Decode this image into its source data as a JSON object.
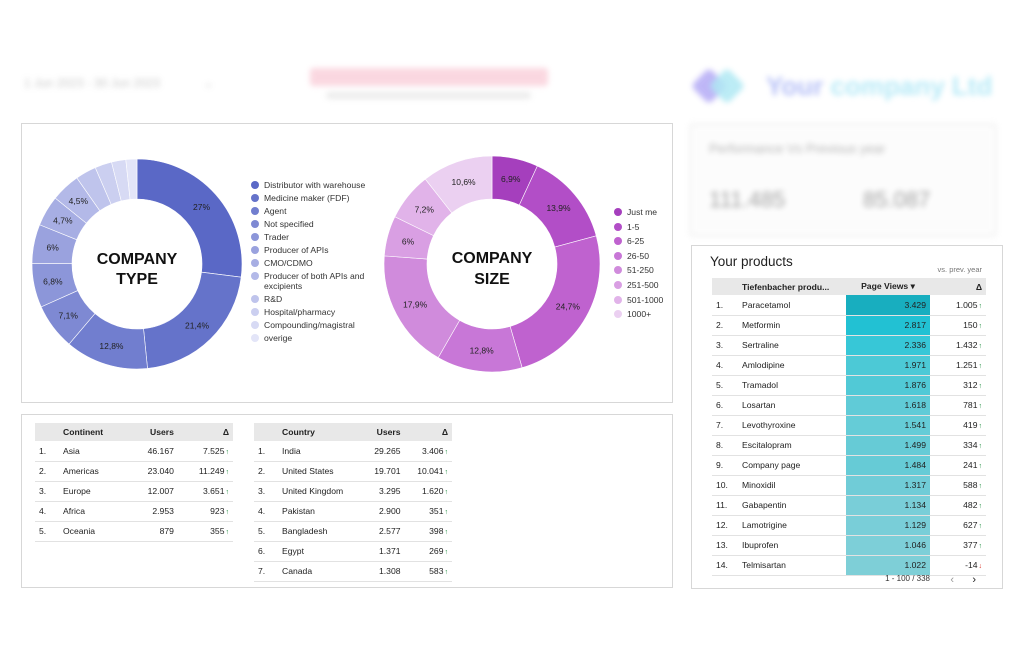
{
  "header": {
    "date_range": "1 Jun 2023 - 30 Jun 2023",
    "company_name_a": "Your",
    "company_name_b": "company Ltd"
  },
  "blur_card": {
    "title": "Performance Vs Previous year",
    "value_a": "111.485",
    "value_b": "85.087"
  },
  "colors": {
    "type_base": "#5c6bc8",
    "size_base": "#a13fc0",
    "bar_cyan": "#18b9cc",
    "up": "#1e8e3e",
    "down": "#d93025"
  },
  "company_type": {
    "label_line1": "COMPANY",
    "label_line2": "TYPE",
    "slices": [
      {
        "name": "Distributor with warehouse",
        "value": 27,
        "label": "27%",
        "color": "#5a68c6"
      },
      {
        "name": "Medicine maker (FDF)",
        "value": 21.4,
        "label": "21,4%",
        "color": "#6573ca"
      },
      {
        "name": "Agent",
        "value": 12.8,
        "label": "12,8%",
        "color": "#717ecf"
      },
      {
        "name": "Not specified",
        "value": 7.1,
        "label": "7,1%",
        "color": "#7e89d3"
      },
      {
        "name": "Trader",
        "value": 6.8,
        "label": "6,8%",
        "color": "#8c96d9"
      },
      {
        "name": "Producer of APIs",
        "value": 6,
        "label": "6%",
        "color": "#9aa2de"
      },
      {
        "name": "CMO/CDMO",
        "value": 4.7,
        "label": "4,7%",
        "color": "#a7aee3"
      },
      {
        "name": "Producer of both APIs and excipients",
        "value": 4.5,
        "label": "4,5%",
        "color": "#b3b9e8"
      },
      {
        "name": "R&D",
        "value": 3.2,
        "label": "",
        "color": "#bfc4ec"
      },
      {
        "name": "Hospital/pharmacy",
        "value": 2.6,
        "label": "",
        "color": "#cbcff0"
      },
      {
        "name": "Compounding/magistral",
        "value": 2.2,
        "label": "",
        "color": "#d7daf4"
      },
      {
        "name": "overige",
        "value": 1.7,
        "label": "",
        "color": "#e3e5f8"
      }
    ]
  },
  "company_size": {
    "label_line1": "COMPANY",
    "label_line2": "SIZE",
    "slices": [
      {
        "name": "Just me",
        "value": 6.9,
        "label": "6,9%",
        "color": "#a53fbd"
      },
      {
        "name": "1-5",
        "value": 13.9,
        "label": "13,9%",
        "color": "#b24ec7"
      },
      {
        "name": "6-25",
        "value": 24.7,
        "label": "24,7%",
        "color": "#bf62cf"
      },
      {
        "name": "26-50",
        "value": 12.8,
        "label": "12,8%",
        "color": "#c877d7"
      },
      {
        "name": "51-250",
        "value": 17.9,
        "label": "17,9%",
        "color": "#d08bdc"
      },
      {
        "name": "251-500",
        "value": 6,
        "label": "6%",
        "color": "#d99fe3"
      },
      {
        "name": "501-1000",
        "value": 7.2,
        "label": "7,2%",
        "color": "#e1b3e9"
      },
      {
        "name": "1000+",
        "value": 10.6,
        "label": "10,6%",
        "color": "#ebd0f1"
      }
    ]
  },
  "continent_table": {
    "headers": [
      "Continent",
      "Users",
      "Δ"
    ],
    "rows": [
      {
        "n": "1.",
        "name": "Asia",
        "users": "46.167",
        "delta": "7.525",
        "dir": "up"
      },
      {
        "n": "2.",
        "name": "Americas",
        "users": "23.040",
        "delta": "11.249",
        "dir": "up"
      },
      {
        "n": "3.",
        "name": "Europe",
        "users": "12.007",
        "delta": "3.651",
        "dir": "up"
      },
      {
        "n": "4.",
        "name": "Africa",
        "users": "2.953",
        "delta": "923",
        "dir": "up"
      },
      {
        "n": "5.",
        "name": "Oceania",
        "users": "879",
        "delta": "355",
        "dir": "up"
      }
    ]
  },
  "country_table": {
    "headers": [
      "Country",
      "Users",
      "Δ"
    ],
    "rows": [
      {
        "n": "1.",
        "name": "India",
        "users": "29.265",
        "delta": "3.406",
        "dir": "up"
      },
      {
        "n": "2.",
        "name": "United States",
        "users": "19.701",
        "delta": "10.041",
        "dir": "up"
      },
      {
        "n": "3.",
        "name": "United Kingdom",
        "users": "3.295",
        "delta": "1.620",
        "dir": "up"
      },
      {
        "n": "4.",
        "name": "Pakistan",
        "users": "2.900",
        "delta": "351",
        "dir": "up"
      },
      {
        "n": "5.",
        "name": "Bangladesh",
        "users": "2.577",
        "delta": "398",
        "dir": "up"
      },
      {
        "n": "6.",
        "name": "Egypt",
        "users": "1.371",
        "delta": "269",
        "dir": "up"
      },
      {
        "n": "7.",
        "name": "Canada",
        "users": "1.308",
        "delta": "583",
        "dir": "up"
      }
    ]
  },
  "products": {
    "title": "Your products",
    "subtitle": "vs. prev. year",
    "headers": [
      "Tiefenbacher produ...",
      "Page Views ▾",
      "Δ"
    ],
    "max_views": 3429,
    "rows": [
      {
        "n": "1.",
        "name": "Paracetamol",
        "views": "3.429",
        "v": 3429,
        "delta": "1.005",
        "dir": "up"
      },
      {
        "n": "2.",
        "name": "Metformin",
        "views": "2.817",
        "v": 2817,
        "delta": "150",
        "dir": "up"
      },
      {
        "n": "3.",
        "name": "Sertraline",
        "views": "2.336",
        "v": 2336,
        "delta": "1.432",
        "dir": "up"
      },
      {
        "n": "4.",
        "name": "Amlodipine",
        "views": "1.971",
        "v": 1971,
        "delta": "1.251",
        "dir": "up"
      },
      {
        "n": "5.",
        "name": "Tramadol",
        "views": "1.876",
        "v": 1876,
        "delta": "312",
        "dir": "up"
      },
      {
        "n": "6.",
        "name": "Losartan",
        "views": "1.618",
        "v": 1618,
        "delta": "781",
        "dir": "up"
      },
      {
        "n": "7.",
        "name": "Levothyroxine",
        "views": "1.541",
        "v": 1541,
        "delta": "419",
        "dir": "up"
      },
      {
        "n": "8.",
        "name": "Escitalopram",
        "views": "1.499",
        "v": 1499,
        "delta": "334",
        "dir": "up"
      },
      {
        "n": "9.",
        "name": "Company page",
        "views": "1.484",
        "v": 1484,
        "delta": "241",
        "dir": "up"
      },
      {
        "n": "10.",
        "name": "Minoxidil",
        "views": "1.317",
        "v": 1317,
        "delta": "588",
        "dir": "up"
      },
      {
        "n": "11.",
        "name": "Gabapentin",
        "views": "1.134",
        "v": 1134,
        "delta": "482",
        "dir": "up"
      },
      {
        "n": "12.",
        "name": "Lamotrigine",
        "views": "1.129",
        "v": 1129,
        "delta": "627",
        "dir": "up"
      },
      {
        "n": "13.",
        "name": "Ibuprofen",
        "views": "1.046",
        "v": 1046,
        "delta": "377",
        "dir": "up"
      },
      {
        "n": "14.",
        "name": "Telmisartan",
        "views": "1.022",
        "v": 1022,
        "delta": "-14",
        "dir": "down"
      }
    ],
    "pagination": "1 - 100 / 338"
  }
}
